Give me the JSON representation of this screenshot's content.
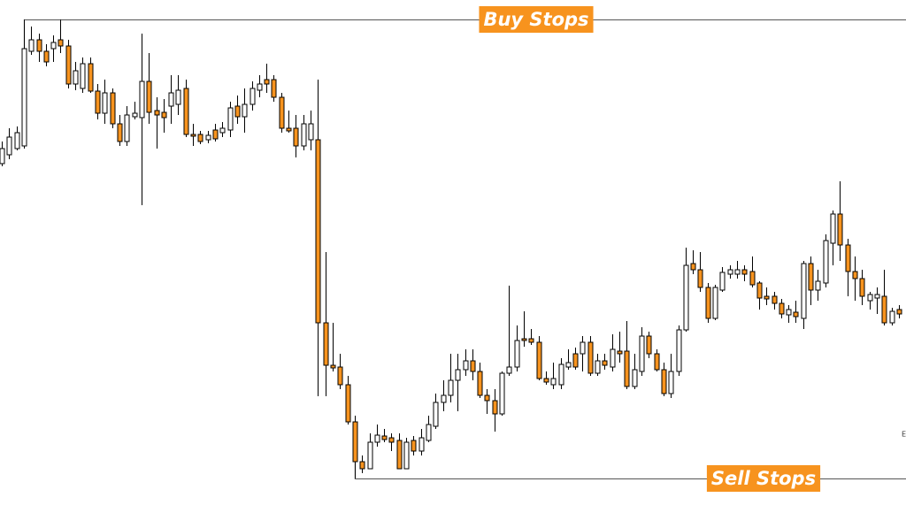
{
  "chart_data": {
    "type": "candlestick",
    "ylim": [
      29,
      600
    ],
    "up_color": "#ffffff",
    "down_color": "#f7931e",
    "wick_color": "#000000",
    "open": [
      415,
      425,
      432,
      435,
      542,
      555,
      542,
      545,
      555,
      548,
      505,
      500,
      528,
      497,
      472,
      495,
      460,
      440,
      468,
      467,
      508,
      475,
      473,
      480,
      482,
      500,
      448,
      448,
      442,
      453,
      450,
      453,
      480,
      468,
      482,
      498,
      510,
      510,
      490,
      455,
      455,
      435,
      442,
      442,
      235,
      187,
      185,
      165,
      123,
      78,
      70,
      100,
      107,
      105,
      102,
      70,
      102,
      90,
      102,
      118,
      145,
      153,
      170,
      182,
      192,
      180,
      153,
      147,
      132,
      178,
      185,
      217,
      217,
      213,
      172,
      165,
      165,
      185,
      200,
      200,
      213,
      178,
      192,
      185,
      203,
      203,
      163,
      180,
      220,
      200,
      182,
      155,
      180,
      227,
      302,
      295,
      275,
      240,
      272,
      290,
      290,
      295,
      293,
      280,
      265,
      265,
      257,
      244,
      247,
      240,
      302,
      272,
      280,
      325,
      358,
      323,
      293,
      285,
      260,
      263,
      265,
      235,
      250
    ],
    "high": [
      440,
      455,
      457,
      578,
      570,
      562,
      550,
      560,
      578,
      555,
      530,
      535,
      535,
      505,
      510,
      500,
      470,
      480,
      485,
      562,
      540,
      490,
      488,
      515,
      515,
      510,
      460,
      452,
      452,
      460,
      462,
      485,
      492,
      500,
      508,
      515,
      528,
      515,
      495,
      475,
      470,
      470,
      475,
      510,
      315,
      235,
      200,
      175,
      130,
      85,
      110,
      120,
      115,
      110,
      110,
      105,
      107,
      115,
      130,
      155,
      170,
      200,
      200,
      205,
      205,
      190,
      160,
      160,
      180,
      277,
      232,
      248,
      228,
      220,
      180,
      190,
      195,
      205,
      207,
      220,
      220,
      200,
      200,
      222,
      225,
      237,
      200,
      230,
      225,
      205,
      190,
      200,
      232,
      320,
      317,
      315,
      280,
      278,
      298,
      300,
      305,
      300,
      310,
      282,
      275,
      270,
      262,
      255,
      260,
      305,
      310,
      295,
      335,
      362,
      395,
      330,
      310,
      295,
      270,
      275,
      295,
      252,
      255
    ],
    "low": [
      412,
      420,
      430,
      432,
      538,
      530,
      525,
      530,
      540,
      500,
      498,
      495,
      495,
      465,
      460,
      455,
      435,
      435,
      465,
      368,
      460,
      432,
      450,
      460,
      470,
      445,
      435,
      437,
      438,
      440,
      445,
      445,
      460,
      450,
      475,
      490,
      495,
      485,
      450,
      450,
      422,
      430,
      430,
      152,
      152,
      180,
      160,
      120,
      59,
      65,
      70,
      95,
      100,
      90,
      70,
      70,
      85,
      85,
      100,
      115,
      135,
      145,
      135,
      175,
      170,
      150,
      132,
      112,
      130,
      175,
      180,
      208,
      210,
      170,
      165,
      160,
      160,
      182,
      182,
      180,
      175,
      175,
      182,
      180,
      190,
      160,
      160,
      175,
      195,
      180,
      152,
      150,
      175,
      225,
      290,
      270,
      235,
      238,
      270,
      285,
      285,
      282,
      275,
      250,
      255,
      250,
      240,
      235,
      235,
      228,
      255,
      260,
      275,
      300,
      305,
      265,
      260,
      255,
      250,
      245,
      232,
      232,
      240
    ],
    "close": [
      432,
      445,
      450,
      545,
      555,
      542,
      530,
      552,
      548,
      505,
      520,
      528,
      497,
      472,
      495,
      460,
      440,
      470,
      472,
      508,
      473,
      470,
      467,
      495,
      498,
      448,
      446,
      440,
      447,
      443,
      455,
      478,
      468,
      482,
      500,
      505,
      505,
      490,
      455,
      452,
      435,
      460,
      460,
      235,
      187,
      184,
      165,
      123,
      78,
      70,
      100,
      108,
      103,
      100,
      70,
      100,
      90,
      105,
      120,
      145,
      153,
      170,
      182,
      192,
      180,
      153,
      147,
      132,
      178,
      185,
      215,
      215,
      213,
      172,
      168,
      172,
      188,
      190,
      185,
      213,
      178,
      192,
      187,
      205,
      200,
      163,
      182,
      220,
      200,
      182,
      155,
      180,
      227,
      300,
      295,
      275,
      240,
      275,
      292,
      295,
      295,
      290,
      278,
      263,
      262,
      257,
      245,
      250,
      242,
      302,
      272,
      282,
      328,
      358,
      323,
      293,
      285,
      265,
      267,
      267,
      235,
      248,
      245
    ],
    "annotations": [
      {
        "text": "Buy Stops",
        "value": 578
      },
      {
        "text": "Sell Stops",
        "value": 59
      }
    ],
    "edge_label": "E"
  }
}
